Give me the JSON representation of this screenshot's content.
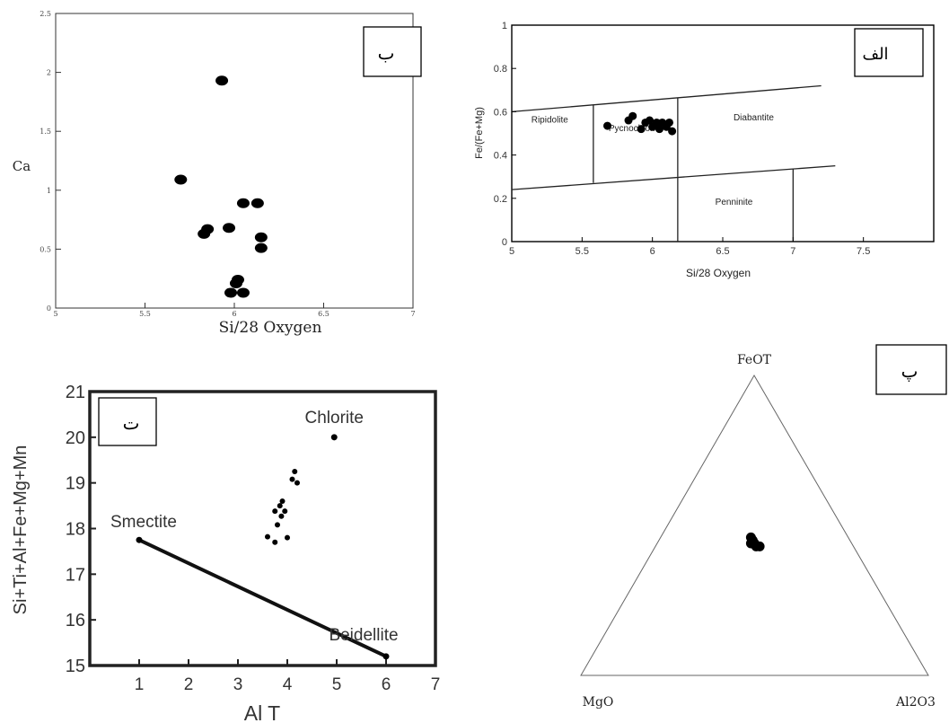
{
  "chart_data": [
    {
      "id": "panel_b",
      "panel_label": "ب",
      "type": "scatter",
      "xlabel": "Si/28 Oxygen",
      "ylabel": "Ca",
      "xlim": [
        5,
        7
      ],
      "ylim": [
        0,
        2.5
      ],
      "x_ticks": [
        "5",
        "5.5",
        "6",
        "6.5",
        "7"
      ],
      "y_ticks": [
        "0",
        "0.5",
        "1",
        "1.5",
        "2",
        "2.5"
      ],
      "x_tick_values": [
        5,
        5.5,
        6,
        6.5,
        7
      ],
      "y_tick_values": [
        0,
        0.5,
        1,
        1.5,
        2,
        2.5
      ],
      "points": [
        {
          "x": 5.93,
          "y": 1.93
        },
        {
          "x": 5.7,
          "y": 1.09
        },
        {
          "x": 6.05,
          "y": 0.89
        },
        {
          "x": 6.13,
          "y": 0.89
        },
        {
          "x": 5.97,
          "y": 0.68
        },
        {
          "x": 5.85,
          "y": 0.67
        },
        {
          "x": 5.83,
          "y": 0.63
        },
        {
          "x": 6.15,
          "y": 0.6
        },
        {
          "x": 6.15,
          "y": 0.51
        },
        {
          "x": 6.02,
          "y": 0.24
        },
        {
          "x": 6.01,
          "y": 0.21
        },
        {
          "x": 5.98,
          "y": 0.13
        },
        {
          "x": 6.05,
          "y": 0.13
        }
      ]
    },
    {
      "id": "panel_alef",
      "panel_label": "الف",
      "type": "scatter",
      "xlabel": "Si/28 Oxygen",
      "ylabel": "Fe/(Fe+Mg)",
      "xlim": [
        5,
        8
      ],
      "ylim": [
        0,
        1
      ],
      "x_ticks": [
        "5",
        "5.5",
        "6",
        "6.5",
        "7",
        "7.5"
      ],
      "y_ticks": [
        "0",
        "0.2",
        "0.4",
        "0.6",
        "0.8",
        "1"
      ],
      "x_tick_values": [
        5,
        5.5,
        6,
        6.5,
        7,
        7.5
      ],
      "y_tick_values": [
        0,
        0.2,
        0.4,
        0.6,
        0.8,
        1
      ],
      "field_labels": [
        {
          "text": "Ripidolite",
          "x": 5.27,
          "y": 0.55
        },
        {
          "text": "Pycnochlorite",
          "x": 5.88,
          "y": 0.51
        },
        {
          "text": "Diabantite",
          "x": 6.72,
          "y": 0.56
        },
        {
          "text": "Penninite",
          "x": 6.58,
          "y": 0.17
        }
      ],
      "boundaries": [
        {
          "x1": 5.0,
          "y1": 0.6,
          "x2": 7.2,
          "y2": 0.72
        },
        {
          "x1": 5.0,
          "y1": 0.24,
          "x2": 7.3,
          "y2": 0.35
        },
        {
          "x1": 5.58,
          "y1": 0.271,
          "x2": 5.58,
          "y2": 0.632
        },
        {
          "x1": 6.18,
          "y1": 0.3,
          "x2": 6.18,
          "y2": 0.665
        },
        {
          "x1": 7.0,
          "y1": 0.338,
          "x2": 7.0,
          "y2": 0.0
        },
        {
          "x1": 6.18,
          "y1": 0.3,
          "x2": 6.18,
          "y2": 0.0
        }
      ],
      "points": [
        {
          "x": 5.68,
          "y": 0.535
        },
        {
          "x": 5.83,
          "y": 0.56
        },
        {
          "x": 5.86,
          "y": 0.58
        },
        {
          "x": 5.92,
          "y": 0.52
        },
        {
          "x": 5.95,
          "y": 0.55
        },
        {
          "x": 5.98,
          "y": 0.56
        },
        {
          "x": 6.0,
          "y": 0.53
        },
        {
          "x": 6.03,
          "y": 0.55
        },
        {
          "x": 6.05,
          "y": 0.52
        },
        {
          "x": 6.07,
          "y": 0.55
        },
        {
          "x": 6.1,
          "y": 0.53
        },
        {
          "x": 6.12,
          "y": 0.55
        },
        {
          "x": 6.14,
          "y": 0.51
        }
      ]
    },
    {
      "id": "panel_te",
      "panel_label": "ت",
      "type": "scatter",
      "xlabel": "Al T",
      "ylabel": "Si+Ti+Al+Fe+Mg+Mn",
      "xlim": [
        0,
        7
      ],
      "ylim": [
        15,
        21
      ],
      "x_ticks": [
        "1",
        "2",
        "3",
        "4",
        "5",
        "6",
        "7"
      ],
      "y_ticks": [
        "15",
        "16",
        "17",
        "18",
        "19",
        "20",
        "21"
      ],
      "x_tick_values": [
        1,
        2,
        3,
        4,
        5,
        6,
        7
      ],
      "y_tick_values": [
        15,
        16,
        17,
        18,
        19,
        20,
        21
      ],
      "end_members": [
        {
          "text": "Smectite",
          "x": 1.0,
          "y": 17.75
        },
        {
          "text": "Beidellite",
          "x": 6.0,
          "y": 15.2
        },
        {
          "text": "Chlorite",
          "x": 4.95,
          "y": 20.0
        }
      ],
      "trend_line": {
        "x1": 1.0,
        "y1": 17.75,
        "x2": 6.0,
        "y2": 15.2
      },
      "points": [
        {
          "x": 4.15,
          "y": 19.25
        },
        {
          "x": 4.1,
          "y": 19.08
        },
        {
          "x": 4.2,
          "y": 19.0
        },
        {
          "x": 3.9,
          "y": 18.6
        },
        {
          "x": 3.85,
          "y": 18.5
        },
        {
          "x": 3.75,
          "y": 18.38
        },
        {
          "x": 3.95,
          "y": 18.38
        },
        {
          "x": 3.88,
          "y": 18.27
        },
        {
          "x": 3.8,
          "y": 18.08
        },
        {
          "x": 3.6,
          "y": 17.82
        },
        {
          "x": 4.0,
          "y": 17.8
        },
        {
          "x": 3.75,
          "y": 17.7
        }
      ]
    },
    {
      "id": "panel_pe",
      "panel_label": "پ",
      "type": "ternary",
      "vertices": {
        "top": "FeOT",
        "left": "MgO",
        "right": "Al2O3"
      },
      "points": [
        {
          "FeOT": 0.46,
          "MgO": 0.28,
          "Al2O3": 0.26
        },
        {
          "FeOT": 0.45,
          "MgO": 0.28,
          "Al2O3": 0.27
        },
        {
          "FeOT": 0.44,
          "MgO": 0.29,
          "Al2O3": 0.27
        },
        {
          "FeOT": 0.44,
          "MgO": 0.28,
          "Al2O3": 0.28
        },
        {
          "FeOT": 0.43,
          "MgO": 0.28,
          "Al2O3": 0.29
        },
        {
          "FeOT": 0.43,
          "MgO": 0.27,
          "Al2O3": 0.3
        }
      ]
    }
  ]
}
